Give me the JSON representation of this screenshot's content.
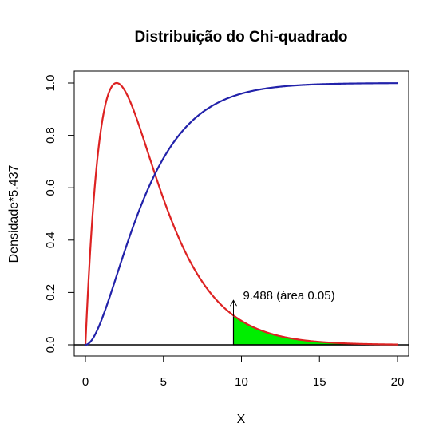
{
  "chart_data": {
    "type": "line",
    "title": "Distribuição do Chi-quadrado",
    "xlabel": "X",
    "ylabel": "Densidade*5.437",
    "xlim": [
      0,
      20
    ],
    "ylim": [
      0,
      1.0
    ],
    "x_ticks": [
      0,
      5,
      10,
      15,
      20
    ],
    "y_ticks": [
      0.0,
      0.2,
      0.4,
      0.6,
      0.8,
      1.0
    ],
    "x_tick_labels": [
      "0",
      "5",
      "10",
      "15",
      "20"
    ],
    "y_tick_labels": [
      "0.0",
      "0.2",
      "0.4",
      "0.6",
      "0.8",
      "1.0"
    ],
    "degrees_of_freedom": 4,
    "density_scale": 5.437,
    "grid": false,
    "series": [
      {
        "color": "#dd2222",
        "x": [
          0,
          0.5,
          1,
          1.5,
          2,
          2.5,
          3,
          3.5,
          4,
          4.5,
          5,
          6,
          7,
          8,
          9,
          9.488,
          10,
          11,
          12,
          13,
          14,
          15,
          16,
          18,
          20
        ],
        "y": [
          0,
          0.529,
          0.824,
          0.962,
          1.0,
          0.973,
          0.909,
          0.825,
          0.735,
          0.643,
          0.557,
          0.406,
          0.287,
          0.199,
          0.135,
          0.11,
          0.091,
          0.06,
          0.039,
          0.025,
          0.016,
          0.01,
          0.0067,
          0.0028,
          0.0012
        ]
      },
      {
        "color": "#2222aa",
        "x": [
          0,
          0.5,
          1,
          1.5,
          2,
          2.5,
          3,
          3.5,
          4,
          4.5,
          5,
          6,
          7,
          8,
          9,
          10,
          11,
          12,
          13,
          14,
          15,
          16,
          18,
          20
        ],
        "y": [
          0,
          0.026,
          0.09,
          0.173,
          0.264,
          0.355,
          0.442,
          0.522,
          0.594,
          0.657,
          0.713,
          0.801,
          0.864,
          0.908,
          0.939,
          0.96,
          0.973,
          0.983,
          0.989,
          0.993,
          0.995,
          0.997,
          0.999,
          1.0
        ]
      }
    ],
    "shaded_area": {
      "from_x": 9.488,
      "to_x": 20,
      "color": "#00ee00",
      "area": 0.05
    },
    "annotation": {
      "text": "9.488 (área 0.05)",
      "x": 9.488,
      "arrow_from_y": 0.11,
      "arrow_to_y": 0.17
    }
  }
}
